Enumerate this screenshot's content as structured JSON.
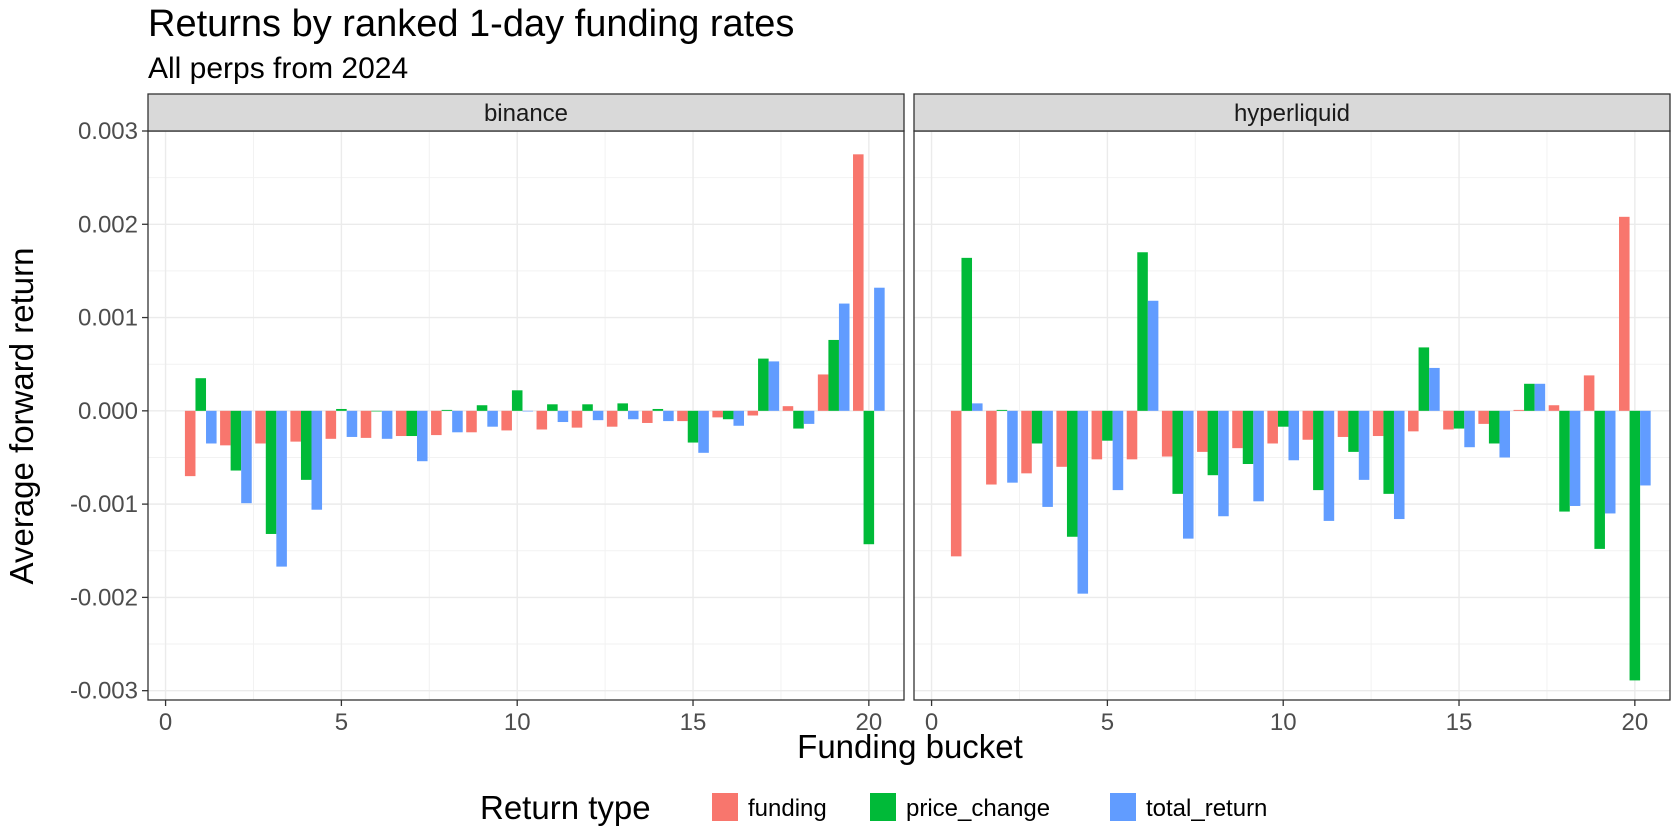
{
  "chart_data": {
    "type": "bar",
    "title": "Returns by ranked 1-day funding rates",
    "subtitle": "All perps from 2024",
    "xlabel": "Funding bucket",
    "ylabel": "Average forward return",
    "xlim": [
      -0.5,
      21.0
    ],
    "ylim": [
      -0.0031,
      0.003
    ],
    "x_ticks": [
      "0",
      "5",
      "10",
      "15",
      "20"
    ],
    "x_tick_values": [
      0,
      5,
      10,
      15,
      20
    ],
    "y_ticks": [
      "0.003",
      "0.002",
      "0.001",
      "0.000",
      "-0.001",
      "-0.002",
      "-0.003"
    ],
    "y_tick_values": [
      0.003,
      0.002,
      0.001,
      0.0,
      -0.001,
      -0.002,
      -0.003
    ],
    "grid": true,
    "legend": {
      "title": "Return type",
      "position": "bottom",
      "entries": [
        {
          "label": "funding",
          "color": "#F8766D"
        },
        {
          "label": "price_change",
          "color": "#00BA38"
        },
        {
          "label": "total_return",
          "color": "#619CFF"
        }
      ]
    },
    "x": [
      1,
      2,
      3,
      4,
      5,
      6,
      7,
      8,
      9,
      10,
      11,
      12,
      13,
      14,
      15,
      16,
      17,
      18,
      19,
      20
    ],
    "panels": [
      {
        "name": "binance",
        "series": [
          {
            "name": "funding",
            "values": [
              -0.0007,
              -0.00037,
              -0.00035,
              -0.00033,
              -0.0003,
              -0.00029,
              -0.00027,
              -0.00026,
              -0.00023,
              -0.00021,
              -0.0002,
              -0.00018,
              -0.00017,
              -0.00013,
              -0.00011,
              -7e-05,
              -5e-05,
              5e-05,
              0.00039,
              0.00275
            ]
          },
          {
            "name": "price_change",
            "values": [
              0.00035,
              -0.00064,
              -0.00132,
              -0.00074,
              2e-05,
              0.0,
              -0.00027,
              1e-05,
              6e-05,
              0.00022,
              7e-05,
              7e-05,
              8e-05,
              2e-05,
              -0.00034,
              -9e-05,
              0.00056,
              -0.00019,
              0.00076,
              -0.00143
            ]
          },
          {
            "name": "total_return",
            "values": [
              -0.00035,
              -0.00099,
              -0.00167,
              -0.00106,
              -0.00028,
              -0.0003,
              -0.00054,
              -0.00023,
              -0.00017,
              0.0,
              -0.00012,
              -0.0001,
              -9e-05,
              -0.00011,
              -0.00045,
              -0.00016,
              0.00053,
              -0.00014,
              0.00115,
              0.00132
            ]
          }
        ]
      },
      {
        "name": "hyperliquid",
        "series": [
          {
            "name": "funding",
            "values": [
              -0.00156,
              -0.00079,
              -0.00067,
              -0.0006,
              -0.00052,
              -0.00052,
              -0.00049,
              -0.00044,
              -0.0004,
              -0.00035,
              -0.00031,
              -0.00028,
              -0.00027,
              -0.00022,
              -0.0002,
              -0.00014,
              1e-05,
              6e-05,
              0.00038,
              0.00208
            ]
          },
          {
            "name": "price_change",
            "values": [
              0.00164,
              1e-05,
              -0.00035,
              -0.00135,
              -0.00032,
              0.0017,
              -0.00089,
              -0.00069,
              -0.00057,
              -0.00017,
              -0.00085,
              -0.00044,
              -0.00089,
              0.00068,
              -0.00019,
              -0.00035,
              0.00029,
              -0.00108,
              -0.00148,
              -0.00289
            ]
          },
          {
            "name": "total_return",
            "values": [
              8e-05,
              -0.00077,
              -0.00103,
              -0.00196,
              -0.00085,
              0.00118,
              -0.00137,
              -0.00113,
              -0.00097,
              -0.00053,
              -0.00118,
              -0.00074,
              -0.00116,
              0.00046,
              -0.00039,
              -0.0005,
              0.00029,
              -0.00102,
              -0.0011,
              -0.0008
            ]
          }
        ]
      }
    ]
  }
}
